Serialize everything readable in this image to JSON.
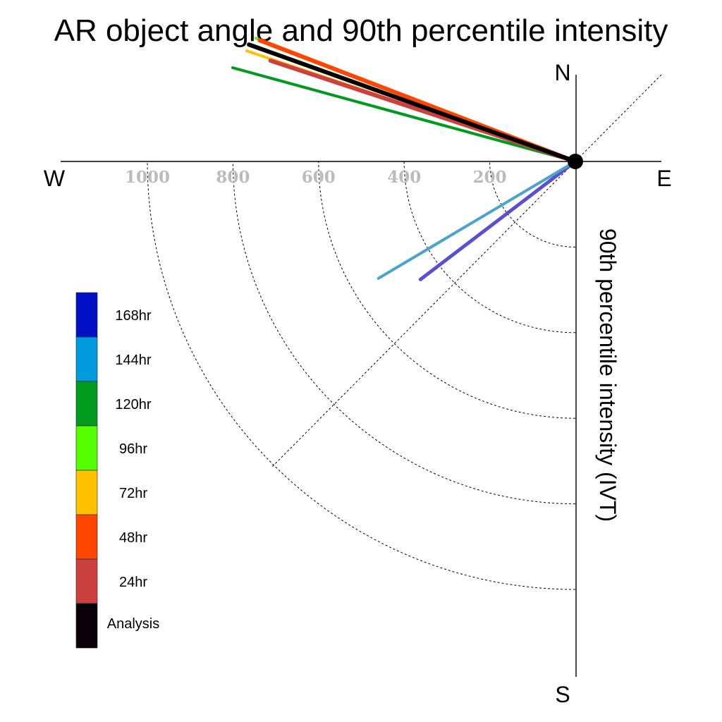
{
  "chart_data": {
    "type": "polar-quadrant",
    "title": "AR object angle and 90th percentile intensity",
    "ylabel": "90th percentile intensity (IVT)",
    "compass": {
      "north": "N",
      "south": "S",
      "west": "W",
      "east": "E"
    },
    "radial_ticks": [
      200,
      400,
      600,
      800,
      1000
    ],
    "radial_tick_labels": [
      "200",
      "400",
      "600",
      "800",
      "1000"
    ],
    "rings": [
      200,
      400,
      600,
      800,
      1000
    ],
    "rlim": [
      0,
      1200
    ],
    "series": [
      {
        "name": "168hr",
        "color": "#5a4fcf",
        "intensity": 455,
        "angle_deg": 52.7,
        "width": 5
      },
      {
        "name": "144hr",
        "color": "#4aa3cc",
        "intensity": 535,
        "angle_deg": 59.3,
        "width": 4
      },
      {
        "name": "120hr",
        "color": "#009a1c",
        "intensity": 830,
        "angle_deg": 105.3,
        "width": 4
      },
      {
        "name": "96hr",
        "color": "#55ff00",
        "intensity": 800,
        "angle_deg": 111.1,
        "width": 4
      },
      {
        "name": "72hr",
        "color": "#ffc200",
        "intensity": 810,
        "angle_deg": 108.6,
        "width": 4
      },
      {
        "name": "48hr",
        "color": "#ff4500",
        "intensity": 790,
        "angle_deg": 111.0,
        "width": 6
      },
      {
        "name": "24hr",
        "color": "#cc4040",
        "intensity": 750,
        "angle_deg": 108.3,
        "width": 6
      },
      {
        "name": "Analysis",
        "color": "#000000",
        "intensity": 810,
        "angle_deg": 109.7,
        "width": 6
      }
    ],
    "legend": {
      "placement": "bottom-left",
      "entries": [
        {
          "label": "168hr",
          "color": "#0010c4"
        },
        {
          "label": "144hr",
          "color": "#009ade"
        },
        {
          "label": "120hr",
          "color": "#009a1c"
        },
        {
          "label": "96hr",
          "color": "#55ff00"
        },
        {
          "label": "72hr",
          "color": "#ffc200"
        },
        {
          "label": "48hr",
          "color": "#ff4500"
        },
        {
          "label": "24hr",
          "color": "#cc4040"
        },
        {
          "label": "Analysis",
          "color": "#0a000a"
        }
      ]
    }
  }
}
